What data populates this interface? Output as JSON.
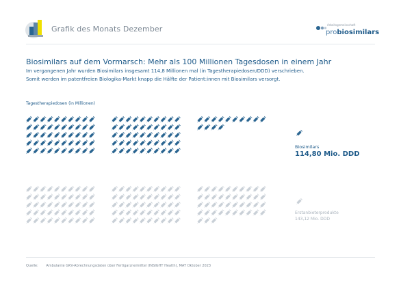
{
  "header": {
    "title": "Grafik des Monats Dezember"
  },
  "brand": {
    "small": "Arbeitsgemeinschaft",
    "pro": "pro",
    "name": "biosimilars"
  },
  "headline": "Biosimilars auf dem Vormarsch: Mehr als 100 Millionen Tagesdosen in einem Jahr",
  "subtitle_1": "Im vergangenen Jahr wurden Biosimilars insgesamt 114,8 Millionen mal (in Tagestherapiedosen/DDD) verschrieben.",
  "subtitle_2": "Somit werden im patentfreien Biologika-Markt knapp die Hälfte der Patient:innen mit Biosimilars versorgt.",
  "colors": {
    "biosimilars": "#2a6591",
    "erstanbieter": "#c9d0d7"
  },
  "chart_data": {
    "type": "pictograph",
    "unit_label": "Tagestherapiedosen (in Millionen)",
    "unit_per_icon": 1,
    "series": [
      {
        "name": "Biosimilars",
        "value_label": "114,80 Mio. DDD",
        "value": 114.8,
        "icons": 114,
        "color": "#2a6591"
      },
      {
        "name": "Erstanbieterprodukte",
        "value_label": "143,12 Mio. DDD",
        "value": 143.12,
        "icons": 143,
        "color": "#c9d0d7"
      }
    ]
  },
  "source": {
    "label": "Quelle:",
    "text": "Ambulante GKV-Abrechnungsdaten über Fertigarzneimittel (INSIGHT Health), MAT Oktober 2023"
  }
}
